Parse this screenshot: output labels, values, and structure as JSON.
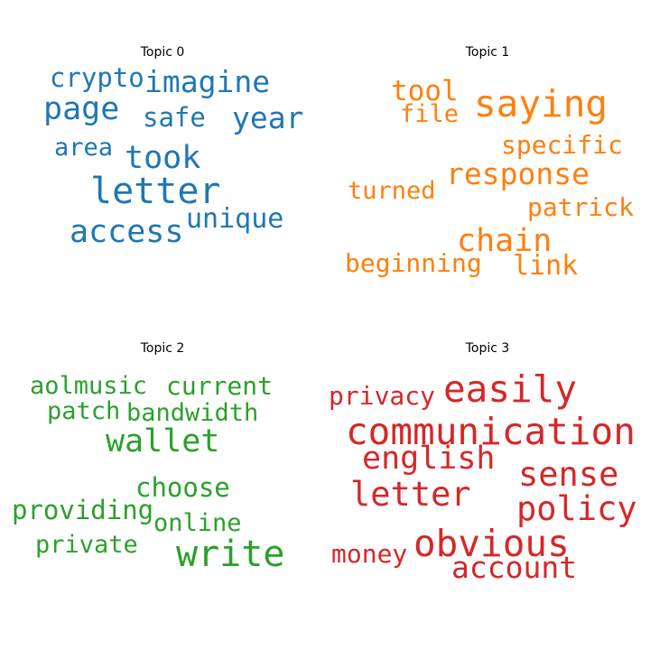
{
  "chart_data": [
    {
      "type": "wordcloud",
      "title": "Topic 0",
      "color": "#1f77b4",
      "words": [
        {
          "text": "crypto",
          "weight": 0.55
        },
        {
          "text": "imagine",
          "weight": 0.6
        },
        {
          "text": "page",
          "weight": 0.72
        },
        {
          "text": "safe",
          "weight": 0.58
        },
        {
          "text": "year",
          "weight": 0.7
        },
        {
          "text": "area",
          "weight": 0.52
        },
        {
          "text": "took",
          "weight": 0.72
        },
        {
          "text": "letter",
          "weight": 0.9
        },
        {
          "text": "access",
          "weight": 0.72
        },
        {
          "text": "unique",
          "weight": 0.6
        }
      ]
    },
    {
      "type": "wordcloud",
      "title": "Topic 1",
      "color": "#ff7f0e",
      "words": [
        {
          "text": "tool",
          "weight": 0.6
        },
        {
          "text": "saying",
          "weight": 0.85
        },
        {
          "text": "file",
          "weight": 0.55
        },
        {
          "text": "specific",
          "weight": 0.55
        },
        {
          "text": "response",
          "weight": 0.68
        },
        {
          "text": "turned",
          "weight": 0.52
        },
        {
          "text": "patrick",
          "weight": 0.55
        },
        {
          "text": "chain",
          "weight": 0.68
        },
        {
          "text": "beginning",
          "weight": 0.55
        },
        {
          "text": "link",
          "weight": 0.58
        }
      ]
    },
    {
      "type": "wordcloud",
      "title": "Topic 2",
      "color": "#2ca02c",
      "words": [
        {
          "text": "aolmusic",
          "weight": 0.55
        },
        {
          "text": "current",
          "weight": 0.58
        },
        {
          "text": "patch",
          "weight": 0.55
        },
        {
          "text": "bandwidth",
          "weight": 0.55
        },
        {
          "text": "wallet",
          "weight": 0.72
        },
        {
          "text": "choose",
          "weight": 0.58
        },
        {
          "text": "providing",
          "weight": 0.55
        },
        {
          "text": "online",
          "weight": 0.55
        },
        {
          "text": "private",
          "weight": 0.55
        },
        {
          "text": "write",
          "weight": 0.85
        }
      ]
    },
    {
      "type": "wordcloud",
      "title": "Topic 3",
      "color": "#d62728",
      "words": [
        {
          "text": "privacy",
          "weight": 0.55
        },
        {
          "text": "easily",
          "weight": 0.75
        },
        {
          "text": "communication",
          "weight": 0.8
        },
        {
          "text": "english",
          "weight": 0.68
        },
        {
          "text": "sense",
          "weight": 0.75
        },
        {
          "text": "letter",
          "weight": 0.72
        },
        {
          "text": "policy",
          "weight": 0.75
        },
        {
          "text": "money",
          "weight": 0.55
        },
        {
          "text": "obvious",
          "weight": 0.8
        },
        {
          "text": "account",
          "weight": 0.68
        }
      ]
    }
  ]
}
